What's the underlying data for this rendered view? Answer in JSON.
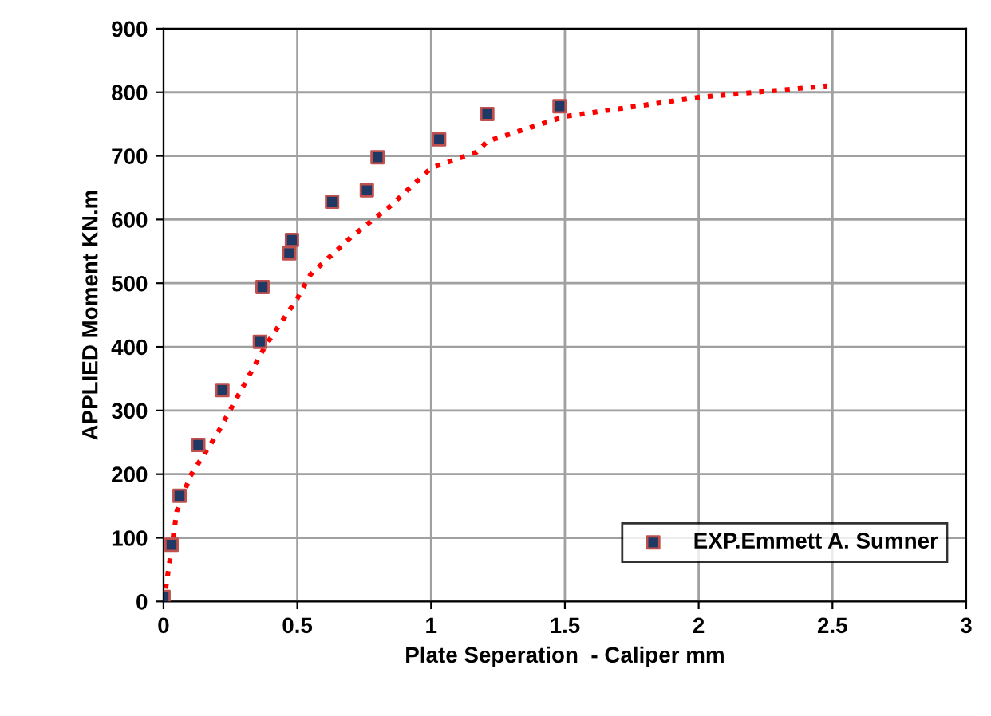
{
  "chart_data": {
    "type": "scatter",
    "xlabel": "Plate Seperation  - Caliper mm",
    "ylabel": "APPLIED Moment KN.m",
    "xlim": [
      0,
      3
    ],
    "xticks": [
      0,
      0.5,
      1,
      1.5,
      2,
      2.5,
      3
    ],
    "ylim": [
      0,
      900
    ],
    "yticks": [
      0,
      100,
      200,
      300,
      400,
      500,
      600,
      700,
      800,
      900
    ],
    "grid": true,
    "legend": "bottom right",
    "series": [
      {
        "name": "EXP.Emmett A. Sumner",
        "marker": "square",
        "color": "#1f3864",
        "x": [
          0,
          0.03,
          0.06,
          0.13,
          0.22,
          0.36,
          0.37,
          0.47,
          0.48,
          0.63,
          0.76,
          0.8,
          1.03,
          1.21,
          1.48
        ],
        "values": [
          7,
          89,
          166,
          246,
          332,
          408,
          494,
          547,
          568,
          628,
          646,
          698,
          726,
          766,
          778
        ]
      },
      {
        "type": "line",
        "line_style": "dotted",
        "color": "#ff0000",
        "x": [
          0,
          0.01,
          0.05,
          0.1,
          0.2,
          0.38,
          0.5,
          0.55,
          0.7,
          0.85,
          1.0,
          1.17,
          1.21,
          1.5,
          2.0,
          2.48
        ],
        "values": [
          0,
          25,
          142,
          197,
          263,
          401,
          476,
          514,
          572,
          622,
          681,
          706,
          723,
          762,
          792,
          810
        ]
      }
    ]
  }
}
